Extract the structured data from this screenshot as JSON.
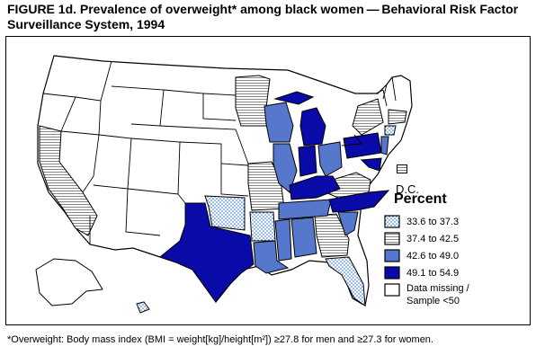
{
  "title": "FIGURE 1d. Prevalence of overweight* among black women — Behavioral Risk Factor Surveillance System, 1994",
  "dc_label": "D.C.",
  "legend": {
    "title": "Percent",
    "items": [
      {
        "label": "33.6 to 37.3",
        "pattern": "dots"
      },
      {
        "label": "37.4 to 42.5",
        "pattern": "lines"
      },
      {
        "label": "42.6 to 49.0",
        "pattern": "medium-blue"
      },
      {
        "label": "49.1 to 54.9",
        "pattern": "dark-blue"
      },
      {
        "label": "Data missing / Sample <50",
        "label_line1": "Data missing /",
        "label_line2": "Sample <50",
        "pattern": "white"
      }
    ]
  },
  "colors": {
    "dark_blue": "#0a0aa8",
    "medium_blue": "#5578cc",
    "dots": "#1e6fd6",
    "lines": "#888888",
    "outline": "#000000"
  },
  "footnote": "*Overweight: Body mass index (BMI = weight[kg]/height[m²]) ≥27.8 for men and ≥27.3 for women."
}
